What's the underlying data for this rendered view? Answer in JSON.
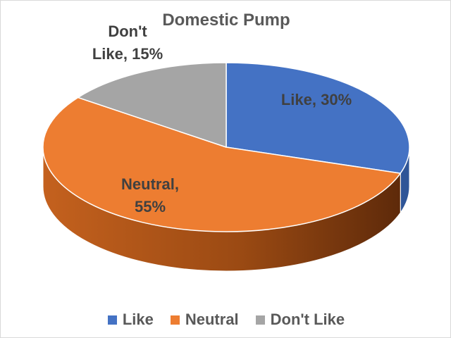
{
  "chart_data": {
    "type": "pie",
    "title": "Domestic Pump",
    "slices": [
      {
        "name": "Like",
        "value": 30,
        "label": "Like, 30%",
        "color": "#4472c4",
        "side_color": "#2f5597"
      },
      {
        "name": "Neutral",
        "value": 55,
        "label": "Neutral, 55%",
        "color": "#ed7d31",
        "side_color": "#a24e12"
      },
      {
        "name": "Don't Like",
        "value": 15,
        "label": "Don't Like, 15%",
        "color": "#a5a5a5",
        "side_color": "#7a7a7a"
      }
    ],
    "legend_position": "bottom",
    "style": "3d-pie"
  }
}
